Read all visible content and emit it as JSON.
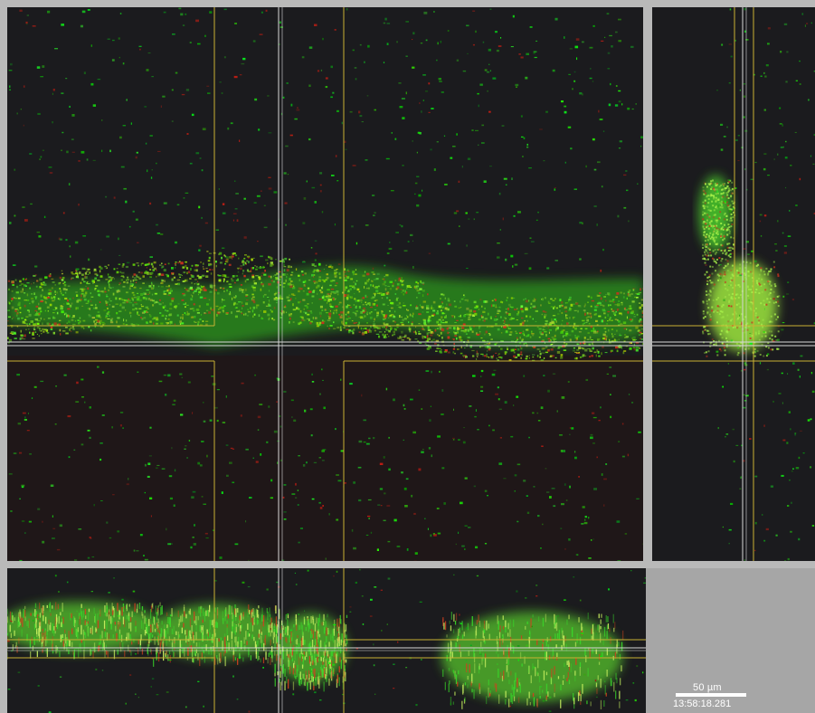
{
  "image": {
    "description": "Confocal microscopy orthogonal view with XY, YZ and XZ projections, green and red fluorescence",
    "colors": {
      "background": "#1b1b1e",
      "signal_green": "#39d82a",
      "signal_red": "#c8321e",
      "crosshair_yellow": "#c9b234",
      "crosshair_white": "#d8d8d8",
      "frame": "#b9b9b9"
    }
  },
  "overlay": {
    "scale_label": "50 µm",
    "timestamp": "13:58:18.281"
  }
}
